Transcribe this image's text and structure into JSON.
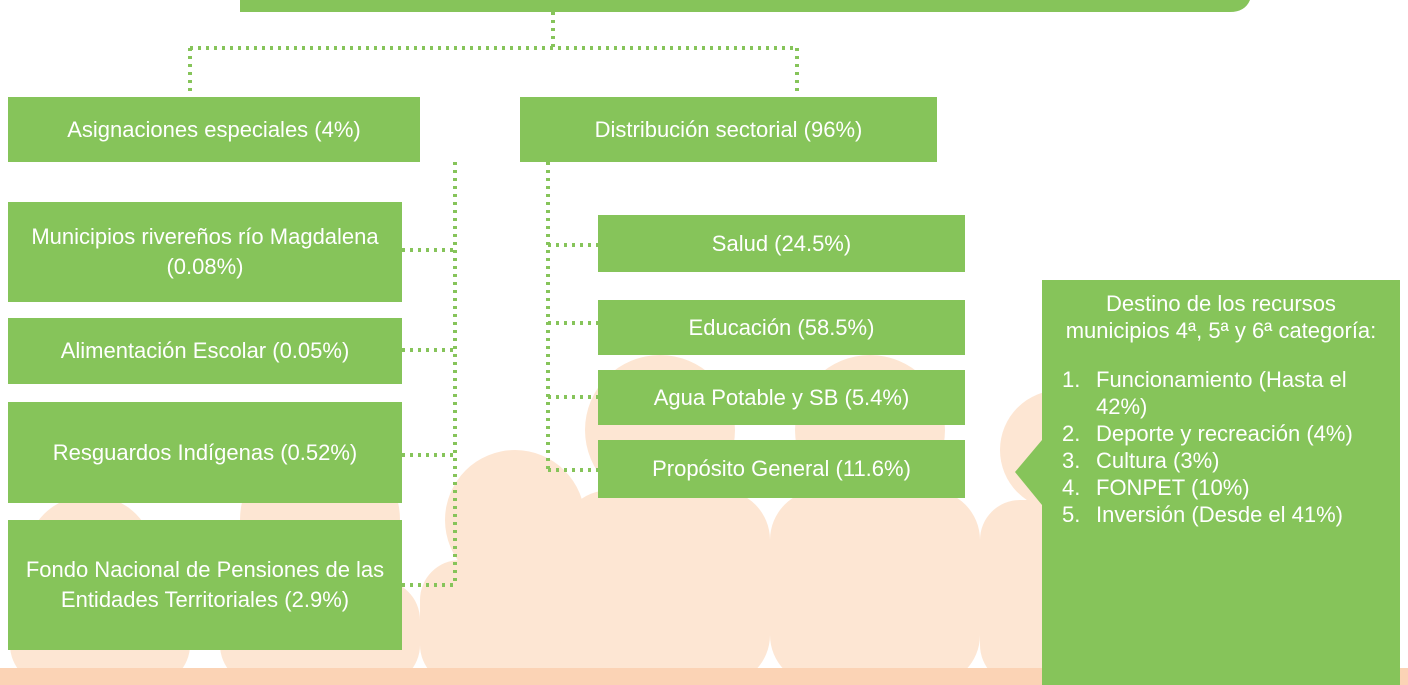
{
  "top_level": {
    "left": {
      "title": "Asignaciones especiales (4%)",
      "children": [
        "Municipios rivereños río Magdalena (0.08%)",
        "Alimentación Escolar (0.05%)",
        "Resguardos Indígenas (0.52%)",
        "Fondo Nacional de Pensiones de las Entidades Territoriales (2.9%)"
      ]
    },
    "right": {
      "title": "Distribución sectorial (96%)",
      "children": [
        "Salud (24.5%)",
        "Educación (58.5%)",
        "Agua Potable y SB (5.4%)",
        "Propósito General (11.6%)"
      ]
    }
  },
  "callout": {
    "title": "Destino de los recursos municipios 4ª, 5ª y 6ª categoría:",
    "items": [
      {
        "number": "1.",
        "text": "Funcionamiento (Hasta el 42%)"
      },
      {
        "number": "2.",
        "text": "Deporte y recreación (4%)"
      },
      {
        "number": "3.",
        "text": "Cultura (3%)"
      },
      {
        "number": "4.",
        "text": "FONPET (10%)"
      },
      {
        "number": "5.",
        "text": "Inversión (Desde el 41%)"
      }
    ]
  }
}
